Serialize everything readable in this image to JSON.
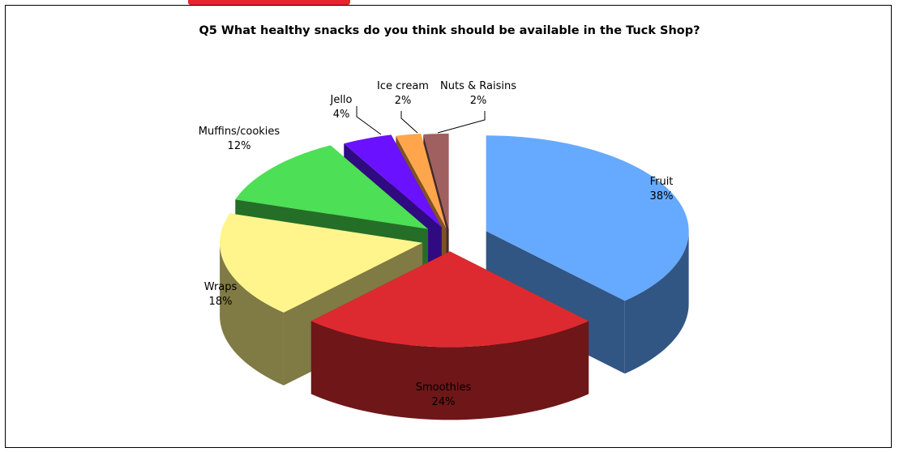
{
  "chart_data": {
    "type": "pie",
    "title": "Q5 What healthy snacks do you think should be available in the Tuck Shop?",
    "three_d": true,
    "exploded": true,
    "slices": [
      {
        "label": "Fruit",
        "value": 38,
        "value_label": "38%",
        "top_color": "#66aaff",
        "side_color": "#325684"
      },
      {
        "label": "Smoothies",
        "value": 24,
        "value_label": "24%",
        "top_color": "#dd2a30",
        "side_color": "#6f1618"
      },
      {
        "label": "Wraps",
        "value": 18,
        "value_label": "18%",
        "top_color": "#fff58c",
        "side_color": "#807a45"
      },
      {
        "label": "Muffins/cookies",
        "value": 12,
        "value_label": "12%",
        "top_color": "#4ddf55",
        "side_color": "#256e28"
      },
      {
        "label": "Jello",
        "value": 4,
        "value_label": "4%",
        "top_color": "#6a12ff",
        "side_color": "#2f0a80"
      },
      {
        "label": "Ice cream",
        "value": 2,
        "value_label": "2%",
        "top_color": "#ffa64d",
        "side_color": "#7f5226"
      },
      {
        "label": "Nuts & Raisins",
        "value": 2,
        "value_label": "2%",
        "top_color": "#a06060",
        "side_color": "#4a2b2b"
      }
    ]
  }
}
